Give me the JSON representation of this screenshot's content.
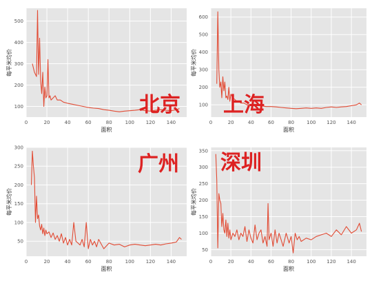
{
  "style": {
    "panel_bg": "#e5e5e5",
    "grid": "#ffffff",
    "line": "#e24a33",
    "city_label": "#dd2222",
    "tick_text": "#555555"
  },
  "chart_data": [
    {
      "type": "line",
      "city": "北京",
      "xlabel": "面积",
      "ylabel": "每平米均价",
      "xlim": [
        0,
        155
      ],
      "ylim": [
        50,
        560
      ],
      "xticks": [
        0,
        20,
        40,
        60,
        80,
        100,
        120,
        140
      ],
      "yticks": [
        100,
        200,
        300,
        400,
        500
      ],
      "grid": true,
      "x": [
        6,
        8,
        10,
        11,
        12,
        13,
        14,
        15,
        16,
        17,
        18,
        19,
        20,
        21,
        22,
        23,
        24,
        26,
        28,
        30,
        33,
        36,
        40,
        45,
        50,
        55,
        60,
        65,
        70,
        75,
        80,
        85,
        90,
        95,
        100,
        105,
        110,
        115,
        120,
        125,
        130,
        135,
        140,
        145,
        148
      ],
      "y": [
        300,
        260,
        240,
        550,
        250,
        420,
        220,
        160,
        260,
        100,
        190,
        140,
        150,
        320,
        140,
        150,
        130,
        140,
        150,
        130,
        130,
        120,
        115,
        110,
        105,
        100,
        95,
        92,
        90,
        85,
        82,
        78,
        75,
        78,
        80,
        82,
        85,
        80,
        78,
        82,
        85,
        82,
        80,
        85,
        90
      ]
    },
    {
      "type": "line",
      "city": "上海",
      "xlabel": "面积",
      "ylabel": "每平米均价",
      "xlim": [
        0,
        155
      ],
      "ylim": [
        30,
        650
      ],
      "xticks": [
        0,
        20,
        40,
        60,
        80,
        100,
        120,
        140
      ],
      "yticks": [
        100,
        200,
        300,
        400,
        500,
        600
      ],
      "grid": true,
      "x": [
        6,
        7,
        8,
        9,
        10,
        11,
        12,
        13,
        14,
        15,
        16,
        17,
        18,
        19,
        20,
        22,
        24,
        26,
        28,
        30,
        33,
        36,
        40,
        45,
        50,
        55,
        60,
        65,
        70,
        75,
        80,
        85,
        90,
        95,
        100,
        105,
        110,
        115,
        120,
        125,
        130,
        135,
        140,
        145,
        148,
        150
      ],
      "y": [
        220,
        630,
        300,
        200,
        230,
        140,
        260,
        180,
        230,
        140,
        150,
        130,
        200,
        120,
        160,
        140,
        130,
        120,
        120,
        110,
        110,
        100,
        100,
        95,
        95,
        90,
        90,
        88,
        85,
        82,
        80,
        78,
        80,
        82,
        80,
        82,
        80,
        85,
        88,
        85,
        88,
        90,
        95,
        100,
        110,
        100
      ]
    },
    {
      "type": "line",
      "city": "广州",
      "xlabel": "面积",
      "ylabel": "每平米均价",
      "xlim": [
        0,
        155
      ],
      "ylim": [
        10,
        300
      ],
      "xticks": [
        0,
        20,
        40,
        60,
        80,
        100,
        120,
        140
      ],
      "yticks": [
        50,
        100,
        150,
        200,
        250,
        300
      ],
      "grid": true,
      "x": [
        5,
        6,
        7,
        8,
        9,
        10,
        11,
        12,
        13,
        14,
        15,
        16,
        17,
        18,
        19,
        20,
        22,
        24,
        26,
        28,
        30,
        32,
        34,
        36,
        38,
        40,
        42,
        44,
        46,
        48,
        50,
        52,
        54,
        56,
        58,
        60,
        62,
        64,
        66,
        68,
        70,
        75,
        80,
        85,
        90,
        95,
        100,
        105,
        110,
        115,
        120,
        125,
        130,
        135,
        140,
        145,
        148,
        150
      ],
      "y": [
        200,
        290,
        250,
        220,
        100,
        170,
        110,
        120,
        90,
        80,
        95,
        70,
        85,
        65,
        80,
        70,
        75,
        60,
        72,
        55,
        65,
        50,
        70,
        45,
        60,
        40,
        55,
        40,
        100,
        50,
        45,
        40,
        55,
        35,
        100,
        30,
        55,
        40,
        50,
        35,
        55,
        30,
        45,
        40,
        42,
        35,
        40,
        42,
        40,
        38,
        40,
        42,
        40,
        43,
        45,
        48,
        60,
        55
      ]
    },
    {
      "type": "line",
      "city": "深圳",
      "xlabel": "面积",
      "ylabel": "每平米均价",
      "xlim": [
        0,
        155
      ],
      "ylim": [
        30,
        360
      ],
      "xticks": [
        0,
        20,
        40,
        60,
        80,
        100,
        120,
        140
      ],
      "yticks": [
        50,
        100,
        150,
        200,
        250,
        300,
        350
      ],
      "grid": true,
      "x": [
        5,
        6,
        7,
        8,
        9,
        10,
        11,
        12,
        13,
        14,
        15,
        16,
        17,
        18,
        19,
        20,
        22,
        24,
        26,
        28,
        30,
        32,
        34,
        36,
        38,
        40,
        42,
        44,
        46,
        48,
        50,
        52,
        54,
        56,
        57,
        58,
        60,
        62,
        64,
        66,
        68,
        70,
        72,
        75,
        78,
        80,
        82,
        84,
        86,
        88,
        90,
        95,
        100,
        105,
        110,
        115,
        120,
        125,
        130,
        135,
        140,
        145,
        148,
        150
      ],
      "y": [
        340,
        260,
        55,
        220,
        200,
        190,
        120,
        160,
        110,
        100,
        140,
        90,
        130,
        85,
        110,
        80,
        100,
        90,
        110,
        80,
        100,
        90,
        120,
        75,
        110,
        85,
        70,
        125,
        80,
        100,
        110,
        70,
        90,
        60,
        190,
        80,
        100,
        60,
        110,
        70,
        100,
        80,
        60,
        100,
        70,
        90,
        40,
        100,
        80,
        90,
        75,
        85,
        80,
        90,
        95,
        100,
        90,
        110,
        95,
        120,
        100,
        110,
        130,
        105
      ]
    }
  ]
}
